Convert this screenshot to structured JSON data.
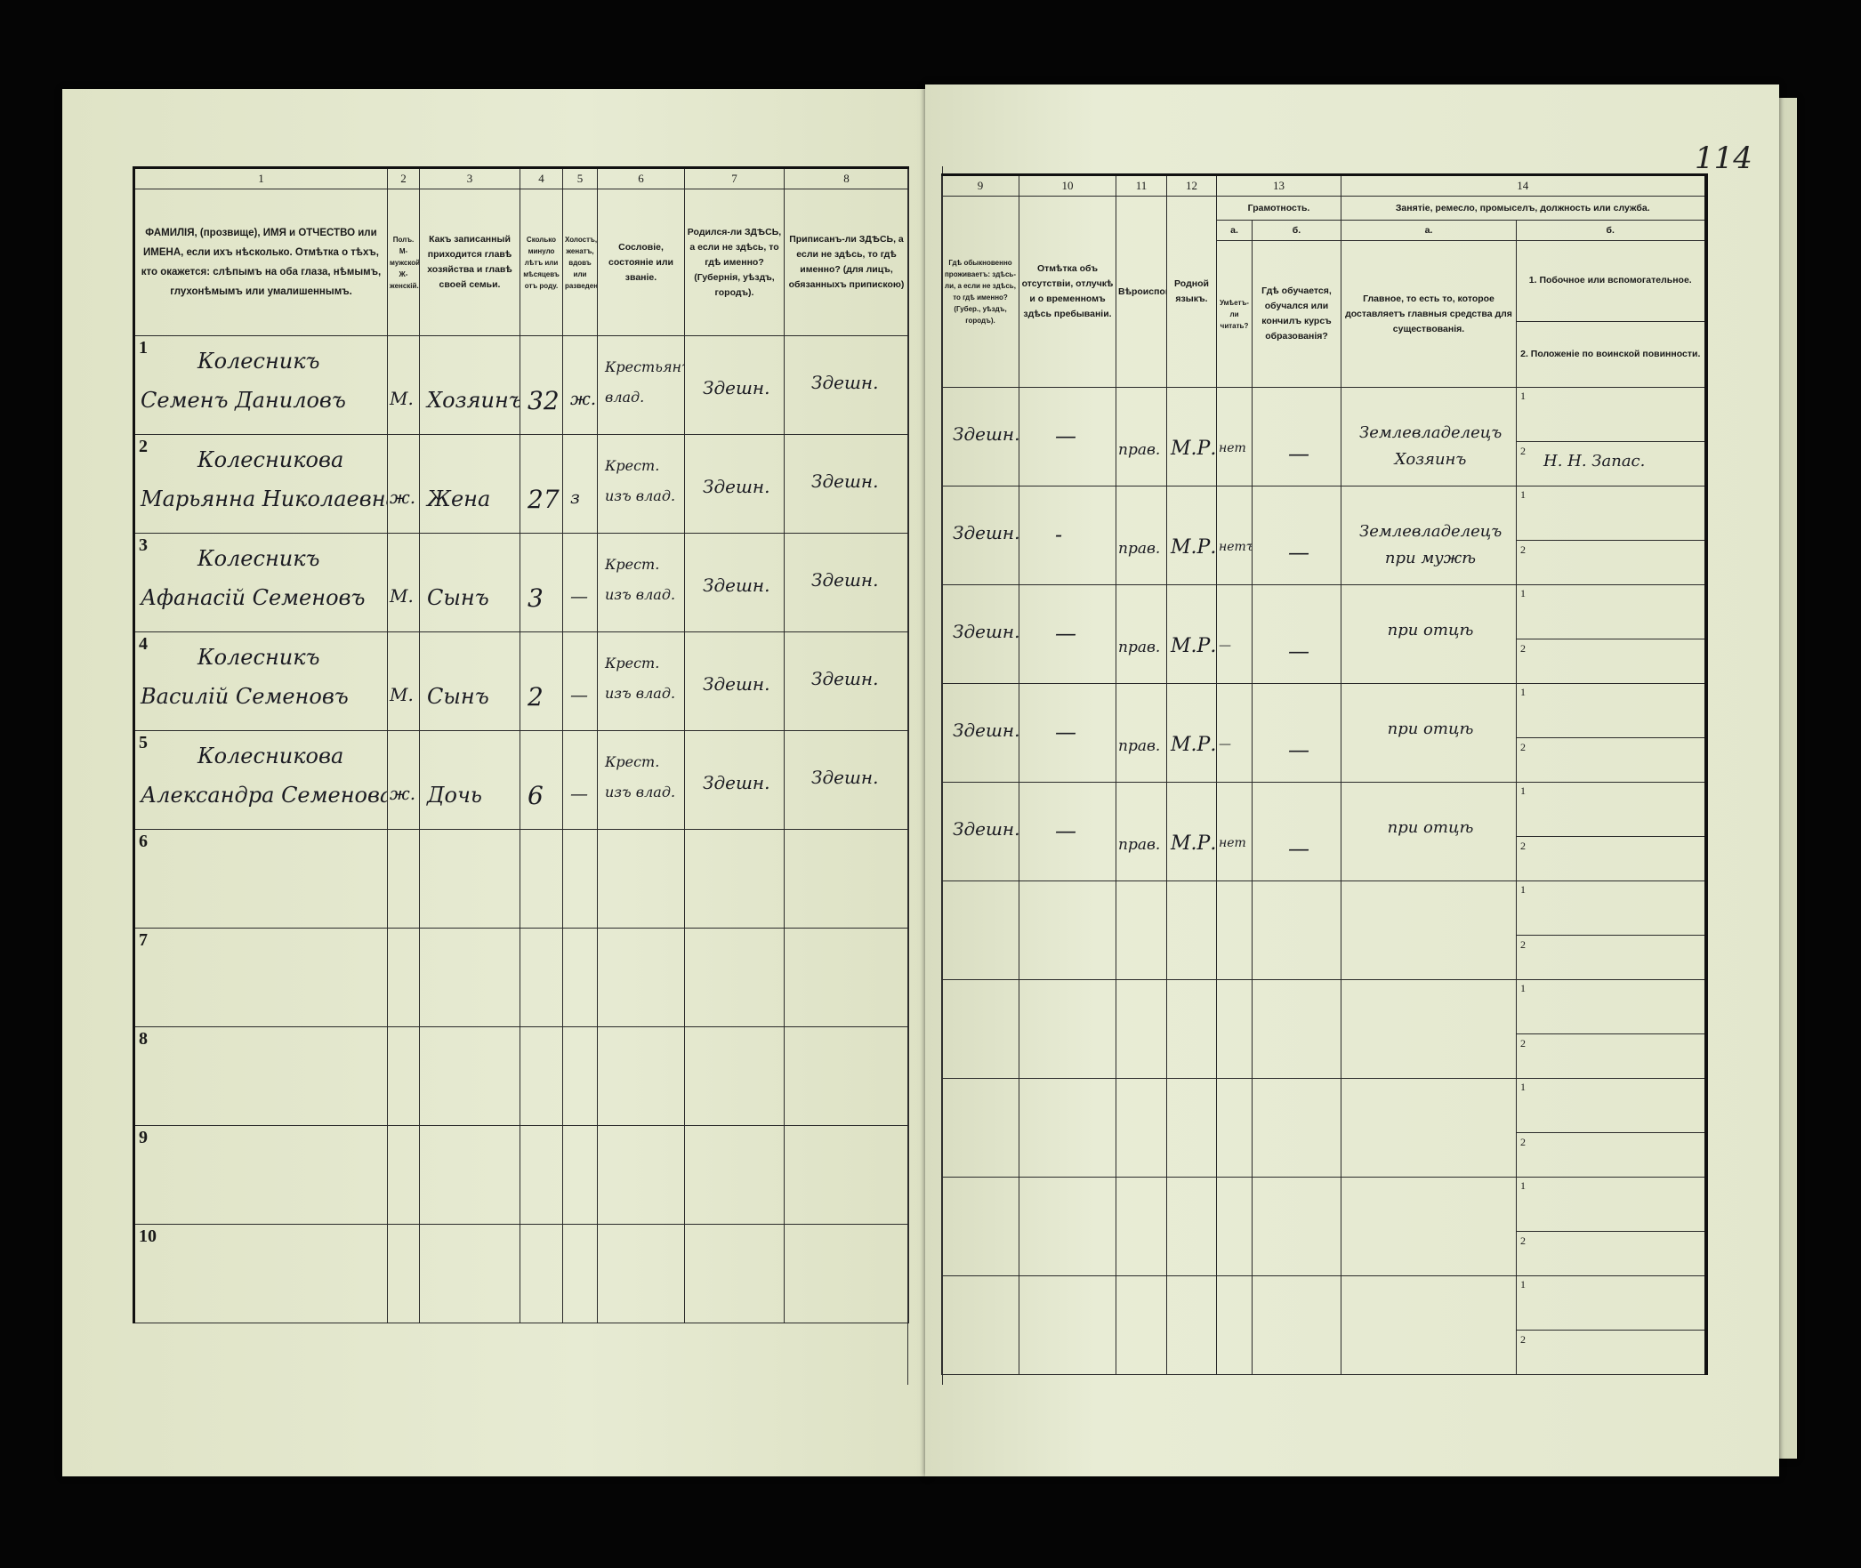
{
  "page_number": "114",
  "left_page": {
    "column_numbers": [
      "1",
      "2",
      "3",
      "4",
      "5",
      "6",
      "7",
      "8"
    ],
    "headers": [
      "ФАМИЛІЯ, (прозвище), ИМЯ и ОТЧЕСТВО или ИМЕНА, если ихъ нѣсколько. Отмѣтка о тѣхъ, кто окажется: слѣпымъ на оба глаза, нѣмымъ, глухонѣмымъ или умалишеннымъ.",
      "Полъ. М-мужской. Ж-женскій.",
      "Какъ записанный приходится главѣ хозяйства и главѣ своей семьи.",
      "Сколько минуло лѣтъ или мѣсяцевъ отъ роду.",
      "Холостъ, женатъ, вдовъ или разведенъ.",
      "Сословіе, состояніе или званіе.",
      "Родился-ли ЗДѢСЬ, а если не здѣсь, то гдѣ именно? (Губернія, уѣздъ, городъ).",
      "Приписанъ-ли ЗДѢСЬ, а если не здѣсь, то гдѣ именно? (для лицъ, обязанныхъ припискою)"
    ]
  },
  "right_page": {
    "column_numbers": [
      "9",
      "10",
      "11",
      "12",
      "13",
      "14"
    ],
    "headers": {
      "col9": "Гдѣ обыкновенно проживаетъ: здѣсь-ли, а если не здѣсь, то гдѣ именно? (Губер., уѣздъ, городъ).",
      "col10": "Отмѣтка объ отсутствіи, отлучкѣ и о временномъ здѣсь пребываніи.",
      "col11": "Вѣроисповѣданія.",
      "col12": "Родной языкъ.",
      "col13_title": "Грамотность.",
      "col13a_label": "а.",
      "col13a": "Умѣетъ-ли читать?",
      "col13b_label": "б.",
      "col13b": "Гдѣ обучается, обучался или кончилъ курсъ образованія?",
      "col14_title": "Занятіе, ремесло, промыселъ, должность или служба.",
      "col14a_label": "а.",
      "col14a": "Главное, то есть то, которое доставляетъ главныя средства для существованія.",
      "col14b_label": "б.",
      "col14b_1": "1. Побочное или вспомогательное.",
      "col14b_2": "2. Положеніе по воинской повинности."
    }
  },
  "entries": [
    {
      "n": "1",
      "surname": "Колесникъ",
      "given": "Семенъ Даниловъ",
      "sex": "М.",
      "relation": "Хозяинъ",
      "age": "32",
      "marital": "ж.",
      "estate": "Крестьянъ влад.",
      "born": "Здешн.",
      "registered": "Здешн.",
      "resides": "Здешн.",
      "absence": "—",
      "religion": "прав.",
      "language": "М.Р.",
      "literate": "нет",
      "education": "—",
      "occupation": "Землевладелецъ Хозяинъ",
      "side_1": "",
      "side_2": "Н. Н. Запас."
    },
    {
      "n": "2",
      "surname": "Колесникова",
      "given": "Марьянна Николаевна",
      "sex": "ж.",
      "relation": "Жена",
      "age": "27",
      "marital": "з",
      "estate": "Крест. изъ влад.",
      "born": "Здешн.",
      "registered": "Здешн.",
      "resides": "Здешн.",
      "absence": "-",
      "religion": "прав.",
      "language": "М.Р.",
      "literate": "нетъ",
      "education": "—",
      "occupation": "Землевладелецъ при мужѣ",
      "side_1": "",
      "side_2": ""
    },
    {
      "n": "3",
      "surname": "Колесникъ",
      "given": "Афанасій Семеновъ",
      "sex": "М.",
      "relation": "Сынъ",
      "age": "3",
      "marital": "—",
      "estate": "Крест. изъ влад.",
      "born": "Здешн.",
      "registered": "Здешн.",
      "resides": "Здешн.",
      "absence": "—",
      "religion": "прав.",
      "language": "М.Р.",
      "literate": "—",
      "education": "—",
      "occupation": "при отцѣ",
      "side_1": "",
      "side_2": ""
    },
    {
      "n": "4",
      "surname": "Колесникъ",
      "given": "Василій Семеновъ",
      "sex": "М.",
      "relation": "Сынъ",
      "age": "2",
      "marital": "—",
      "estate": "Крест. изъ влад.",
      "born": "Здешн.",
      "registered": "Здешн.",
      "resides": "Здешн.",
      "absence": "—",
      "religion": "прав.",
      "language": "М.Р.",
      "literate": "—",
      "education": "—",
      "occupation": "при отцѣ",
      "side_1": "",
      "side_2": ""
    },
    {
      "n": "5",
      "surname": "Колесникова",
      "given": "Александра Семенова",
      "sex": "ж.",
      "relation": "Дочь",
      "age": "6",
      "marital": "—",
      "estate": "Крест. изъ влад.",
      "born": "Здешн.",
      "registered": "Здешн.",
      "resides": "Здешн.",
      "absence": "—",
      "religion": "прав.",
      "language": "М.Р.",
      "literate": "нет",
      "education": "—",
      "occupation": "при отцѣ",
      "side_1": "",
      "side_2": ""
    },
    {
      "n": "6"
    },
    {
      "n": "7"
    },
    {
      "n": "8"
    },
    {
      "n": "9"
    },
    {
      "n": "10"
    }
  ],
  "colors": {
    "paper": "#e4e8cf",
    "ink": "#1b1b22",
    "background": "#050505"
  }
}
